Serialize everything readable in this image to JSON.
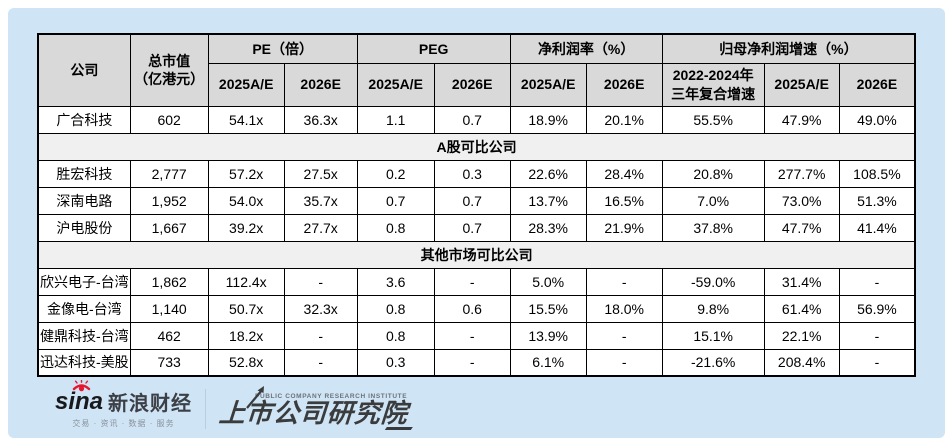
{
  "colors": {
    "page_background": "#cfe4f5",
    "header_cell": "#d9d9d9",
    "section_row": "#f0f0f0",
    "border": "#000000",
    "sina_red": "#e6162d",
    "logo_dark": "#3a3b3d"
  },
  "table": {
    "header": {
      "company": "公司",
      "market_cap": "总市值\n（亿港元）",
      "groups": [
        {
          "label": "PE（倍）",
          "span": 2
        },
        {
          "label": "PEG",
          "span": 2
        },
        {
          "label": "净利润率（%）",
          "span": 2
        },
        {
          "label": "归母净利润增速（%）",
          "span": 3
        }
      ],
      "subheaders": [
        "2025A/E",
        "2026E",
        "2025A/E",
        "2026E",
        "2025A/E",
        "2026E",
        "2022-2024年\n三年复合增速",
        "2025A/E",
        "2026E"
      ]
    },
    "rows": [
      {
        "type": "data",
        "cells": [
          "广合科技",
          "602",
          "54.1x",
          "36.3x",
          "1.1",
          "0.7",
          "18.9%",
          "20.1%",
          "55.5%",
          "47.9%",
          "49.0%"
        ]
      },
      {
        "type": "section",
        "label": "A股可比公司"
      },
      {
        "type": "data",
        "cells": [
          "胜宏科技",
          "2,777",
          "57.2x",
          "27.5x",
          "0.2",
          "0.3",
          "22.6%",
          "28.4%",
          "20.8%",
          "277.7%",
          "108.5%"
        ]
      },
      {
        "type": "data",
        "cells": [
          "深南电路",
          "1,952",
          "54.0x",
          "35.7x",
          "0.7",
          "0.7",
          "13.7%",
          "16.5%",
          "7.0%",
          "73.0%",
          "51.3%"
        ]
      },
      {
        "type": "data",
        "cells": [
          "沪电股份",
          "1,667",
          "39.2x",
          "27.7x",
          "0.8",
          "0.7",
          "28.3%",
          "21.9%",
          "37.8%",
          "47.7%",
          "41.4%"
        ]
      },
      {
        "type": "section",
        "label": "其他市场可比公司"
      },
      {
        "type": "data",
        "cells": [
          "欣兴电子-台湾",
          "1,862",
          "112.4x",
          "-",
          "3.6",
          "-",
          "5.0%",
          "-",
          "-59.0%",
          "31.4%",
          "-"
        ]
      },
      {
        "type": "data",
        "cells": [
          "金像电-台湾",
          "1,140",
          "50.7x",
          "32.3x",
          "0.8",
          "0.6",
          "15.5%",
          "18.0%",
          "9.8%",
          "61.4%",
          "56.9%"
        ]
      },
      {
        "type": "data",
        "cells": [
          "健鼎科技-台湾",
          "462",
          "18.2x",
          "-",
          "0.8",
          "-",
          "13.9%",
          "-",
          "15.1%",
          "22.1%",
          "-"
        ]
      },
      {
        "type": "data",
        "cells": [
          "迅达科技-美股",
          "733",
          "52.8x",
          "-",
          "0.3",
          "-",
          "6.1%",
          "-",
          "-21.6%",
          "208.4%",
          "-"
        ]
      }
    ]
  },
  "chart_data": {
    "type": "table",
    "title": "",
    "column_groups": [
      "PE（倍）",
      "PEG",
      "净利润率（%）",
      "归母净利润增速（%）"
    ],
    "columns": [
      "公司",
      "总市值（亿港元）",
      "PE 2025A/E",
      "PE 2026E",
      "PEG 2025A/E",
      "PEG 2026E",
      "净利润率 2025A/E",
      "净利润率 2026E",
      "归母净利润增速 2022-2024年三年复合增速",
      "归母净利润增速 2025A/E",
      "归母净利润增速 2026E"
    ],
    "sections": [
      {
        "name": null,
        "rows": [
          [
            "广合科技",
            "602",
            "54.1x",
            "36.3x",
            "1.1",
            "0.7",
            "18.9%",
            "20.1%",
            "55.5%",
            "47.9%",
            "49.0%"
          ]
        ]
      },
      {
        "name": "A股可比公司",
        "rows": [
          [
            "胜宏科技",
            "2,777",
            "57.2x",
            "27.5x",
            "0.2",
            "0.3",
            "22.6%",
            "28.4%",
            "20.8%",
            "277.7%",
            "108.5%"
          ],
          [
            "深南电路",
            "1,952",
            "54.0x",
            "35.7x",
            "0.7",
            "0.7",
            "13.7%",
            "16.5%",
            "7.0%",
            "73.0%",
            "51.3%"
          ],
          [
            "沪电股份",
            "1,667",
            "39.2x",
            "27.7x",
            "0.8",
            "0.7",
            "28.3%",
            "21.9%",
            "37.8%",
            "47.7%",
            "41.4%"
          ]
        ]
      },
      {
        "name": "其他市场可比公司",
        "rows": [
          [
            "欣兴电子-台湾",
            "1,862",
            "112.4x",
            "-",
            "3.6",
            "-",
            "5.0%",
            "-",
            "-59.0%",
            "31.4%",
            "-"
          ],
          [
            "金像电-台湾",
            "1,140",
            "50.7x",
            "32.3x",
            "0.8",
            "0.6",
            "15.5%",
            "18.0%",
            "9.8%",
            "61.4%",
            "56.9%"
          ],
          [
            "健鼎科技-台湾",
            "462",
            "18.2x",
            "-",
            "0.8",
            "-",
            "13.9%",
            "-",
            "15.1%",
            "22.1%",
            "-"
          ],
          [
            "迅达科技-美股",
            "733",
            "52.8x",
            "-",
            "0.3",
            "-",
            "6.1%",
            "-",
            "-21.6%",
            "208.4%",
            "-"
          ]
        ]
      }
    ]
  },
  "footer": {
    "sina_logo_text": "sina",
    "sina_brand": "新浪财经",
    "sina_tagline": "交易 · 资讯 · 数据 · 服务",
    "institute_subtitle": "PUBLIC COMPANY RESEARCH INSTITUTE",
    "institute_name": "上市公司研究院"
  }
}
